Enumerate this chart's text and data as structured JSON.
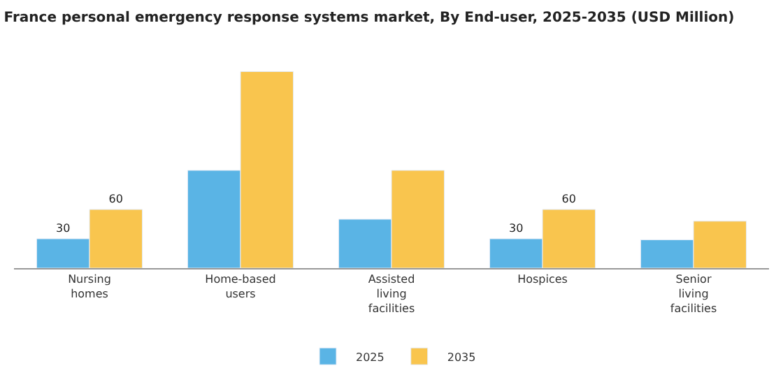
{
  "chart_data": {
    "type": "bar",
    "title": "France personal emergency response systems market, By End-user, 2025-2035 (USD Million)",
    "categories": [
      "Nursing homes",
      "Home-based users",
      "Assisted living facilities",
      "Hospices",
      "Senior living facilities"
    ],
    "series": [
      {
        "name": "2025",
        "color": "#5ab4e5",
        "values": [
          30,
          100,
          50,
          30,
          29
        ],
        "value_labels": [
          "30",
          null,
          null,
          "30",
          null
        ]
      },
      {
        "name": "2035",
        "color": "#f9c54e",
        "values": [
          60,
          201,
          100,
          60,
          48
        ],
        "value_labels": [
          "60",
          null,
          null,
          "60",
          null
        ]
      }
    ],
    "legend": "bottom"
  }
}
